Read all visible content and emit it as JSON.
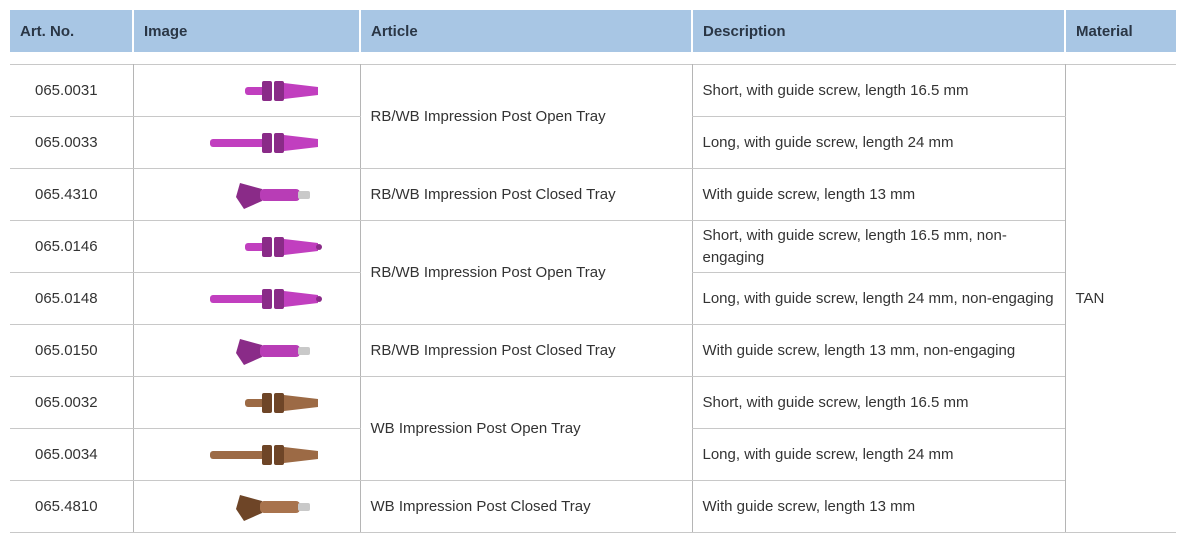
{
  "table": {
    "header": [
      "Art. No.",
      "Image",
      "Article",
      "Description",
      "Material"
    ],
    "groups": [
      {
        "article": "RB/WB Impression Post Open Tray",
        "items": [
          {
            "art_no": "065.0031",
            "description": "Short, with guide screw, length 16.5 mm"
          },
          {
            "art_no": "065.0033",
            "description": "Long, with guide screw, length 24 mm"
          }
        ]
      },
      {
        "article": "RB/WB Impression Post Closed Tray",
        "items": [
          {
            "art_no": "065.4310",
            "description": "With guide screw, length 13 mm"
          }
        ]
      },
      {
        "article": "RB/WB Impression Post Open Tray",
        "items": [
          {
            "art_no": "065.0146",
            "description": "Short, with guide screw, length 16.5 mm, non-engaging"
          },
          {
            "art_no": "065.0148",
            "description": "Long, with guide screw, length 24 mm, non-engaging"
          }
        ]
      },
      {
        "article": "RB/WB Impression Post Closed Tray",
        "items": [
          {
            "art_no": "065.0150",
            "description": "With guide screw, length 13 mm, non-engaging"
          }
        ]
      },
      {
        "article": "WB Impression Post Open Tray",
        "items": [
          {
            "art_no": "065.0032",
            "description": "Short, with guide screw, length 16.5 mm"
          },
          {
            "art_no": "065.0034",
            "description": "Long, with guide screw, length 24 mm"
          }
        ]
      },
      {
        "article": "WB Impression Post Closed Tray",
        "items": [
          {
            "art_no": "065.4810",
            "description": "With guide screw, length 13 mm"
          }
        ]
      }
    ],
    "material": "TAN"
  }
}
